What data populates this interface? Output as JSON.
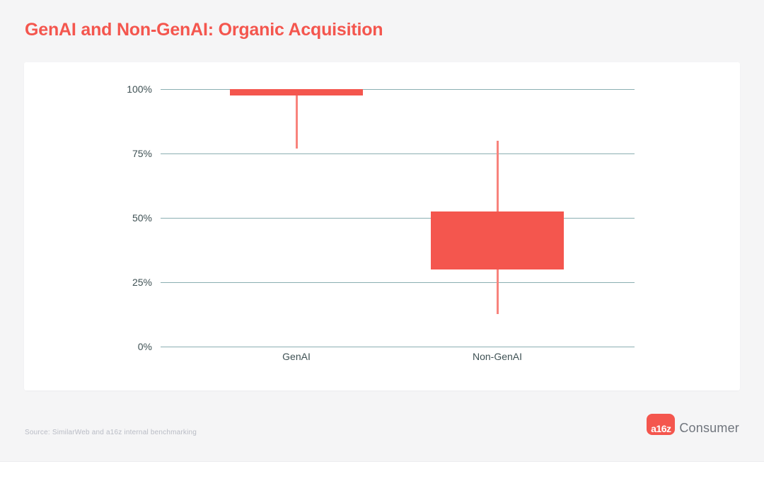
{
  "page": {
    "title": "GenAI and Non-GenAI: Organic Acquisition",
    "source_note": "Source: SimilarWeb and a16z internal benchmarking",
    "logo": {
      "badge_text": "a16z",
      "wordmark": "Consumer"
    }
  },
  "colors": {
    "accent": "#F4564E",
    "whisker": "#F8837C",
    "gridline": "#8BAFB2",
    "tick_label": "#3F5154",
    "source_text": "#B9BCC5",
    "wordmark_text": "#70757D",
    "page_bg": "#F5F5F6",
    "card_bg": "#FFFFFF"
  },
  "chart_data": {
    "type": "box",
    "title": "GenAI and Non-GenAI: Organic Acquisition",
    "categories": [
      "GenAI",
      "Non-GenAI"
    ],
    "series": [
      {
        "name": "GenAI",
        "whisker_low": 77,
        "box_low": 97.5,
        "box_high": 100,
        "whisker_high": 100
      },
      {
        "name": "Non-GenAI",
        "whisker_low": 12.5,
        "box_low": 30,
        "box_high": 52.5,
        "whisker_high": 80
      }
    ],
    "xlabel": "",
    "ylabel": "",
    "ylim": [
      0,
      100
    ],
    "yticks": [
      0,
      25,
      50,
      75,
      100
    ],
    "ytick_labels": [
      "0%",
      "25%",
      "50%",
      "75%",
      "100%"
    ],
    "grid": true,
    "legend": false,
    "median_line": false
  }
}
